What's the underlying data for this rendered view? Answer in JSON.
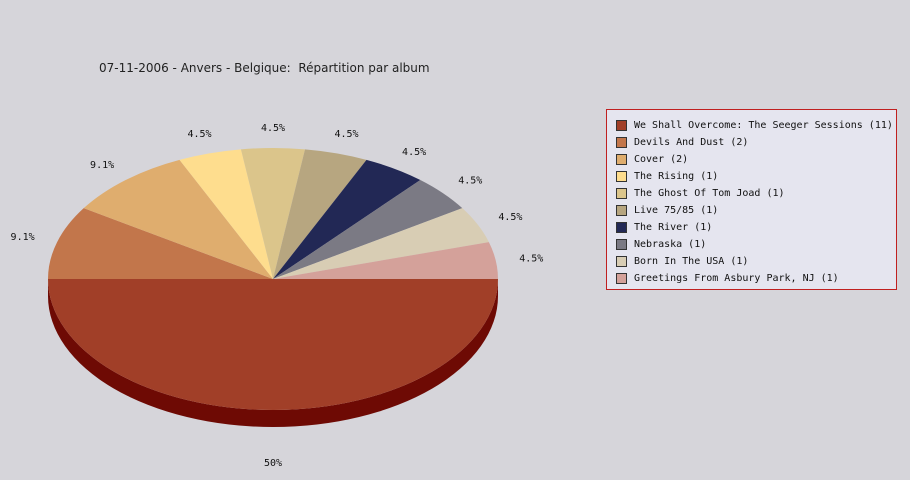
{
  "chart_data": {
    "type": "pie",
    "title": "07-11-2006 - Anvers - Belgique:  Répartition par album",
    "slices": [
      {
        "label": "We Shall Overcome: The Seeger Sessions (11)",
        "value": 11,
        "pct_label": "50%",
        "color": "#a13f28"
      },
      {
        "label": "Devils And Dust (2)",
        "value": 2,
        "pct_label": "9.1%",
        "color": "#c2764b"
      },
      {
        "label": "Cover (2)",
        "value": 2,
        "pct_label": "9.1%",
        "color": "#dfad6e"
      },
      {
        "label": "The Rising (1)",
        "value": 1,
        "pct_label": "4.5%",
        "color": "#fedd8e"
      },
      {
        "label": "The Ghost Of Tom Joad (1)",
        "value": 1,
        "pct_label": "4.5%",
        "color": "#dbc58b"
      },
      {
        "label": "Live 75/85 (1)",
        "value": 1,
        "pct_label": "4.5%",
        "color": "#b7a680"
      },
      {
        "label": "The River (1)",
        "value": 1,
        "pct_label": "4.5%",
        "color": "#222855"
      },
      {
        "label": "Nebraska (1)",
        "value": 1,
        "pct_label": "4.5%",
        "color": "#7b7a84"
      },
      {
        "label": "Born In The USA (1)",
        "value": 1,
        "pct_label": "4.5%",
        "color": "#d8cdb4"
      },
      {
        "label": "Greetings From Asbury Park, NJ (1)",
        "value": 1,
        "pct_label": "4.5%",
        "color": "#d4a19a"
      }
    ],
    "legend_position": "right"
  }
}
